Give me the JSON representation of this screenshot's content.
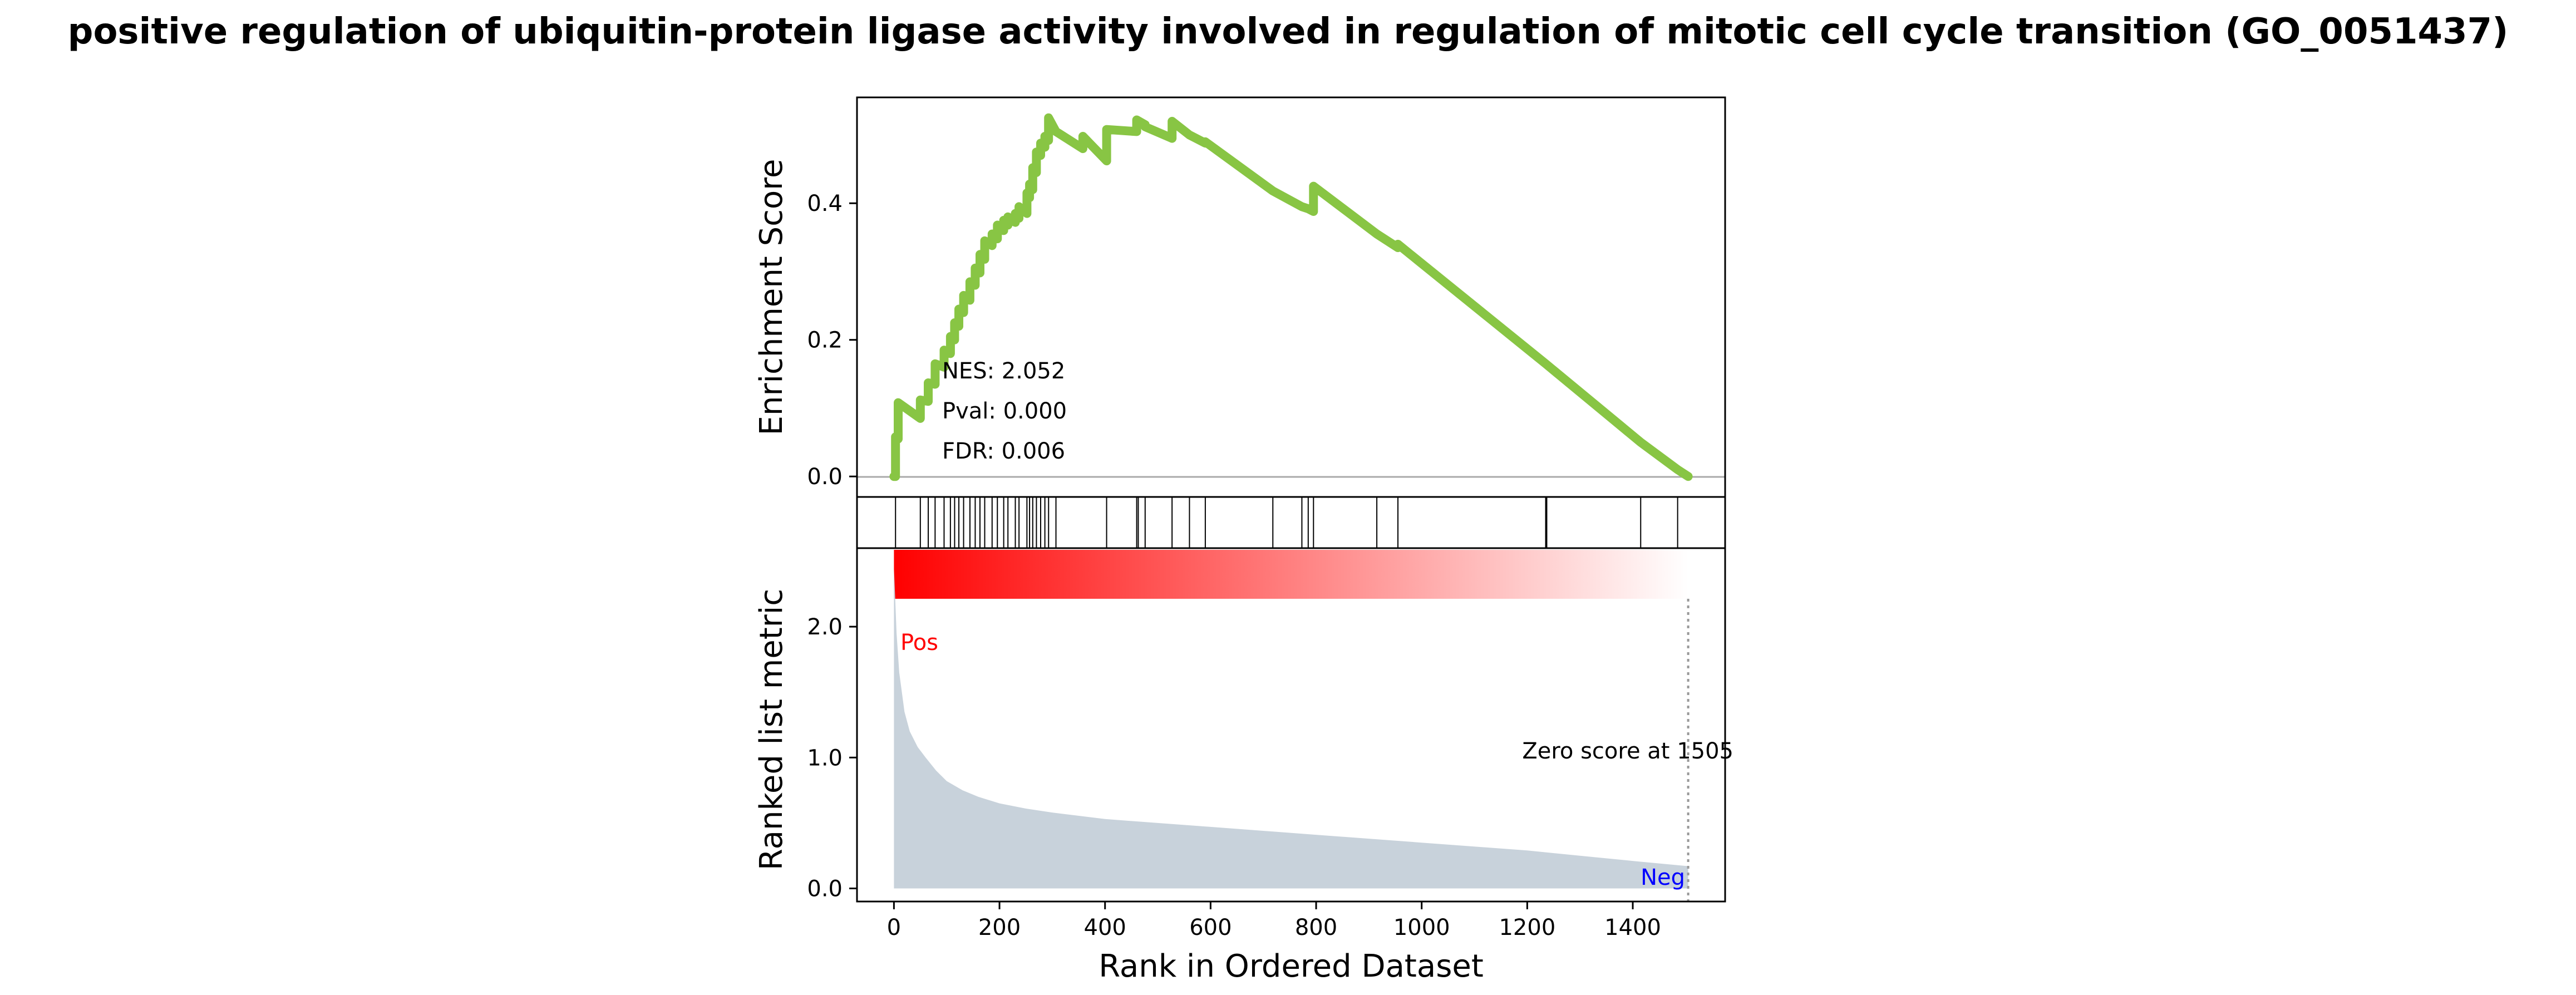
{
  "title": "positive regulation of ubiquitin-protein ligase activity involved in regulation of mitotic cell cycle transition (GO_0051437)",
  "chart_data": {
    "type": "line",
    "title": "positive regulation of ubiquitin-protein ligase activity involved in regulation of mitotic cell cycle transition (GO_0051437)",
    "xlabel": "Rank in Ordered Dataset",
    "xlim": [
      -70,
      1575
    ],
    "xticks": [
      0,
      200,
      400,
      600,
      800,
      1000,
      1200,
      1400
    ],
    "panels": {
      "enrichment": {
        "ylabel": "Enrichment Score",
        "ylim": [
          -0.03,
          0.555
        ],
        "yticks": [
          0.0,
          0.2,
          0.4
        ],
        "line_color": "#88c544",
        "stats": [
          "NES: 2.052",
          "Pval: 0.000",
          "FDR: 0.006"
        ],
        "series": [
          {
            "x": [
              0,
              3,
              3,
              8,
              8,
              50,
              50,
              65,
              65,
              78,
              78,
              95,
              95,
              107,
              107,
              115,
              115,
              123,
              123,
              132,
              132,
              144,
              144,
              154,
              154,
              163,
              163,
              172,
              172,
              186,
              186,
              196,
              196,
              208,
              208,
              216,
              216,
              230,
              230,
              237,
              237,
              252,
              252,
              257,
              257,
              263,
              263,
              270,
              270,
              278,
              278,
              286,
              286,
              293,
              293,
              307,
              307,
              358,
              358,
              403,
              403,
              460,
              460,
              476,
              476,
              527,
              527,
              560,
              560,
              590,
              590,
              718,
              718,
              773,
              773,
              785,
              785,
              795,
              795,
              915,
              915,
              955,
              955,
              1235,
              1235,
              1415,
              1415,
              1485,
              1485,
              1505
            ],
            "y": [
              0.0,
              0.0,
              0.058,
              0.055,
              0.108,
              0.085,
              0.112,
              0.11,
              0.137,
              0.135,
              0.165,
              0.16,
              0.185,
              0.18,
              0.205,
              0.2,
              0.225,
              0.22,
              0.245,
              0.24,
              0.265,
              0.258,
              0.285,
              0.28,
              0.305,
              0.298,
              0.325,
              0.318,
              0.345,
              0.338,
              0.355,
              0.348,
              0.368,
              0.36,
              0.375,
              0.368,
              0.38,
              0.372,
              0.385,
              0.378,
              0.395,
              0.385,
              0.415,
              0.408,
              0.428,
              0.42,
              0.452,
              0.445,
              0.475,
              0.47,
              0.488,
              0.482,
              0.498,
              0.492,
              0.525,
              0.505,
              0.505,
              0.48,
              0.498,
              0.462,
              0.508,
              0.505,
              0.522,
              0.515,
              0.512,
              0.495,
              0.52,
              0.5,
              0.5,
              0.488,
              0.49,
              0.418,
              0.418,
              0.395,
              0.395,
              0.392,
              0.392,
              0.388,
              0.425,
              0.355,
              0.355,
              0.335,
              0.34,
              0.165,
              0.165,
              0.05,
              0.05,
              0.01,
              0.01,
              0.0
            ]
          }
        ]
      },
      "hits": {
        "positions": [
          3,
          50,
          65,
          78,
          95,
          107,
          115,
          123,
          132,
          144,
          154,
          163,
          172,
          186,
          196,
          208,
          216,
          230,
          237,
          252,
          257,
          263,
          270,
          278,
          286,
          293,
          307,
          403,
          460,
          463,
          476,
          527,
          560,
          590,
          718,
          773,
          785,
          795,
          915,
          955,
          1235,
          1237,
          1415,
          1485
        ]
      },
      "ranking": {
        "gradient_colors": [
          "#ff0000",
          "#ffffff"
        ],
        "range": [
          0,
          1505
        ]
      },
      "metric": {
        "ylabel": "Ranked list metric",
        "ylim": [
          -0.1,
          2.6
        ],
        "yticks": [
          0.0,
          1.0,
          2.0
        ],
        "fill_color": "#c8d2db",
        "curve": {
          "x": [
            0,
            2,
            5,
            10,
            20,
            30,
            45,
            60,
            80,
            100,
            130,
            160,
            200,
            250,
            300,
            400,
            500,
            600,
            700,
            800,
            900,
            1000,
            1100,
            1200,
            1300,
            1400,
            1505
          ],
          "y": [
            2.45,
            2.25,
            1.95,
            1.65,
            1.35,
            1.2,
            1.08,
            1.0,
            0.9,
            0.82,
            0.75,
            0.7,
            0.65,
            0.61,
            0.58,
            0.53,
            0.5,
            0.47,
            0.44,
            0.41,
            0.38,
            0.35,
            0.32,
            0.29,
            0.25,
            0.21,
            0.17
          ]
        },
        "pos_label": "Pos",
        "neg_label": "Neg",
        "pos_color": "#ff0000",
        "neg_color": "#0000ff",
        "zero_score_x": 1505,
        "zero_score_label": "Zero score at 1505"
      }
    }
  }
}
